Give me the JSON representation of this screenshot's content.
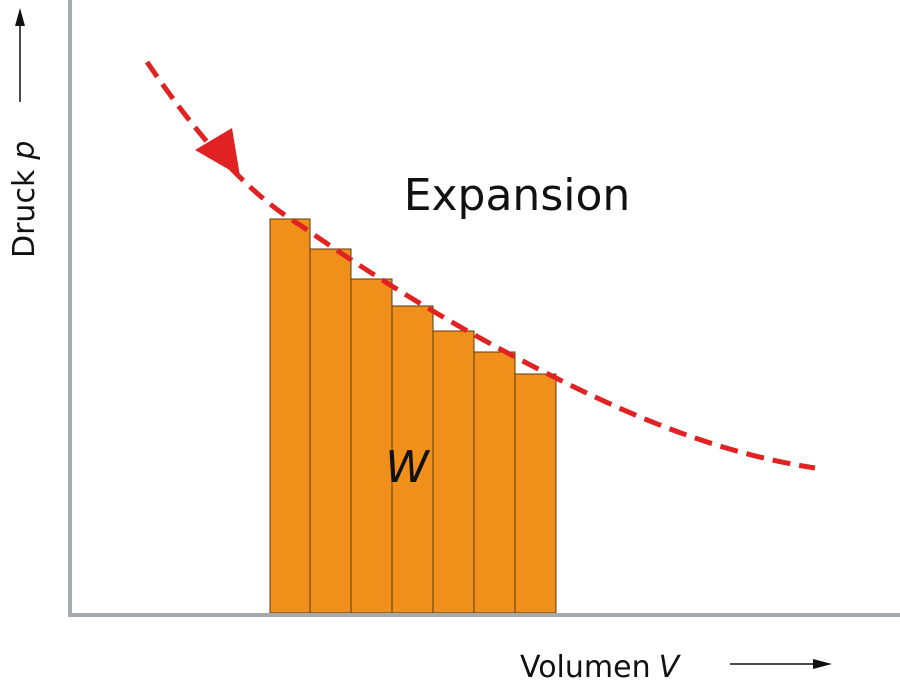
{
  "y_axis": {
    "label": "Druck",
    "symbol": "p"
  },
  "x_axis": {
    "label": "Volumen",
    "symbol": "V"
  },
  "process_label": "Expansion",
  "area_label": "W"
}
